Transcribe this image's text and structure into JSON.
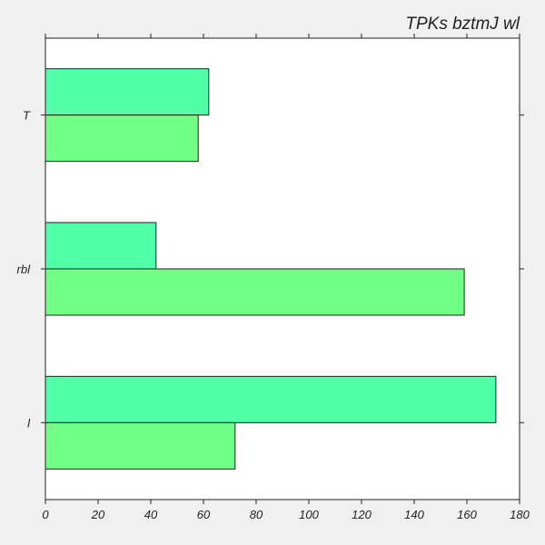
{
  "chart_data": {
    "type": "bar",
    "orientation": "horizontal",
    "title": "TPKs bztmJ wl",
    "xlabel": "",
    "ylabel": "",
    "categories": [
      "T",
      "rbl",
      "l"
    ],
    "series": [
      {
        "values": [
          62,
          42,
          171
        ],
        "color": "#50ffa8"
      },
      {
        "values": [
          58,
          159,
          72
        ],
        "color": "#72ff88"
      }
    ],
    "xlim": [
      0,
      180
    ],
    "xticks": [
      0,
      20,
      40,
      60,
      80,
      100,
      120,
      140,
      160,
      180
    ],
    "grid": false,
    "legend": "none",
    "background": "#ffffff"
  }
}
